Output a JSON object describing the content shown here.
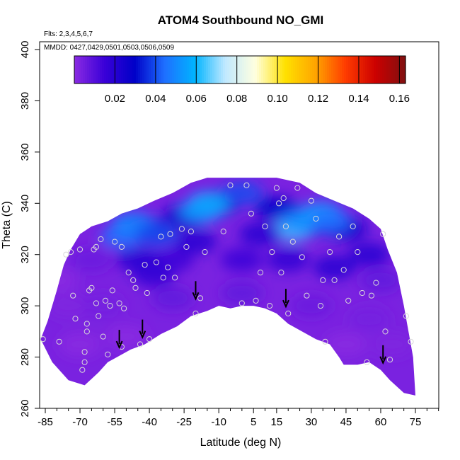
{
  "chart_data": {
    "type": "heatmap",
    "title": "ATOM4 Southbound NO_GMI",
    "subtitle_flights": "Flts: 2,3,4,5,6,7",
    "subtitle_dates": "MMDD: 0427,0429,0501,0503,0506,0509",
    "xlabel": "Latitude (deg N)",
    "ylabel": "Theta (C)",
    "xlim": [
      -88,
      92
    ],
    "ylim": [
      260,
      405
    ],
    "x_ticks": [
      -85,
      -70,
      -55,
      -40,
      -25,
      -10,
      5,
      15,
      30,
      45,
      60,
      75
    ],
    "y_ticks": [
      260,
      280,
      300,
      320,
      340,
      360,
      380,
      400
    ],
    "colorbar": {
      "range": [
        0,
        0.163
      ],
      "ticks": [
        0.02,
        0.04,
        0.06,
        0.08,
        0.1,
        0.12,
        0.14,
        0.16
      ],
      "tick_labels": [
        "0.02",
        "0.04",
        "0.06",
        "0.08",
        "0.10",
        "0.12",
        "0.14",
        "0.16"
      ],
      "colors": [
        "#8a2be2",
        "#3a00d8",
        "#0000c8",
        "#1e6fff",
        "#00b4ff",
        "#bfe8ff",
        "#ffffe0",
        "#ffe100",
        "#ffa500",
        "#ff3c00",
        "#cc0000",
        "#7f1010"
      ]
    },
    "upper_boundary": [
      [
        -87,
        287
      ],
      [
        -84,
        294
      ],
      [
        -80,
        306
      ],
      [
        -77,
        316
      ],
      [
        -74,
        322
      ],
      [
        -70,
        328
      ],
      [
        -65,
        331
      ],
      [
        -58,
        333
      ],
      [
        -52,
        336
      ],
      [
        -45,
        338
      ],
      [
        -38,
        341
      ],
      [
        -30,
        344
      ],
      [
        -22,
        348
      ],
      [
        -15,
        350
      ],
      [
        -5,
        350
      ],
      [
        5,
        350
      ],
      [
        15,
        350
      ],
      [
        25,
        348
      ],
      [
        32,
        344
      ],
      [
        40,
        341
      ],
      [
        48,
        338
      ],
      [
        55,
        334
      ],
      [
        60,
        330
      ],
      [
        63,
        322
      ],
      [
        67,
        313
      ],
      [
        70,
        300
      ],
      [
        72,
        290
      ],
      [
        74,
        280
      ],
      [
        75,
        265
      ]
    ],
    "lower_boundary": [
      [
        -87,
        287
      ],
      [
        -82,
        278
      ],
      [
        -75,
        271
      ],
      [
        -68,
        269
      ],
      [
        -62,
        274
      ],
      [
        -58,
        278
      ],
      [
        -54,
        280
      ],
      [
        -48,
        283
      ],
      [
        -42,
        285
      ],
      [
        -35,
        289
      ],
      [
        -28,
        292
      ],
      [
        -22,
        296
      ],
      [
        -15,
        298
      ],
      [
        -10,
        300
      ],
      [
        -5,
        299
      ],
      [
        0,
        300
      ],
      [
        5,
        300
      ],
      [
        10,
        299
      ],
      [
        15,
        297
      ],
      [
        20,
        293
      ],
      [
        26,
        290
      ],
      [
        32,
        287
      ],
      [
        38,
        285
      ],
      [
        42,
        280
      ],
      [
        44,
        277
      ],
      [
        50,
        277
      ],
      [
        55,
        278
      ],
      [
        60,
        275
      ],
      [
        64,
        271
      ],
      [
        70,
        266
      ],
      [
        75,
        265
      ]
    ],
    "field_points": [
      {
        "lat": -10,
        "theta": 340,
        "value": 0.025
      },
      {
        "lat": -25,
        "theta": 335,
        "value": 0.025
      },
      {
        "lat": 15,
        "theta": 338,
        "value": 0.03
      },
      {
        "lat": 30,
        "theta": 332,
        "value": 0.03
      },
      {
        "lat": 45,
        "theta": 330,
        "value": 0.025
      },
      {
        "lat": -40,
        "theta": 330,
        "value": 0.02
      },
      {
        "lat": -52,
        "theta": 327,
        "value": 0.045
      },
      {
        "lat": -47,
        "theta": 332,
        "value": 0.05
      },
      {
        "lat": -37,
        "theta": 328,
        "value": 0.04
      },
      {
        "lat": -14,
        "theta": 340,
        "value": 0.06
      },
      {
        "lat": -18,
        "theta": 337,
        "value": 0.055
      },
      {
        "lat": 0,
        "theta": 344,
        "value": 0.04
      },
      {
        "lat": 22,
        "theta": 330,
        "value": 0.065
      },
      {
        "lat": 26,
        "theta": 333,
        "value": 0.05
      },
      {
        "lat": 34,
        "theta": 336,
        "value": 0.055
      },
      {
        "lat": 38,
        "theta": 333,
        "value": 0.045
      },
      {
        "lat": -30,
        "theta": 318,
        "value": 0.015
      },
      {
        "lat": -45,
        "theta": 318,
        "value": 0.02
      },
      {
        "lat": -38,
        "theta": 312,
        "value": 0.018
      },
      {
        "lat": 0,
        "theta": 318,
        "value": 0.015
      },
      {
        "lat": 20,
        "theta": 318,
        "value": 0.018
      },
      {
        "lat": 40,
        "theta": 315,
        "value": 0.02
      },
      {
        "lat": 55,
        "theta": 320,
        "value": 0.02
      },
      {
        "lat": -75,
        "theta": 300,
        "value": 0.002
      },
      {
        "lat": -60,
        "theta": 300,
        "value": 0.004
      },
      {
        "lat": -30,
        "theta": 303,
        "value": 0.008
      },
      {
        "lat": 0,
        "theta": 305,
        "value": 0.008
      },
      {
        "lat": 30,
        "theta": 300,
        "value": 0.006
      },
      {
        "lat": 55,
        "theta": 295,
        "value": 0.004
      },
      {
        "lat": -70,
        "theta": 285,
        "value": 0.0
      },
      {
        "lat": -50,
        "theta": 288,
        "value": 0.0
      },
      {
        "lat": 45,
        "theta": 285,
        "value": 0.0
      },
      {
        "lat": 65,
        "theta": 285,
        "value": 0.002
      },
      {
        "lat": -80,
        "theta": 310,
        "value": 0.0
      },
      {
        "lat": 60,
        "theta": 310,
        "value": 0.008
      },
      {
        "lat": -20,
        "theta": 325,
        "value": 0.02
      },
      {
        "lat": 8,
        "theta": 328,
        "value": 0.02
      },
      {
        "lat": -65,
        "theta": 318,
        "value": 0.006
      }
    ],
    "sample_points": [
      [
        -86,
        287
      ],
      [
        -79,
        286
      ],
      [
        -73,
        304
      ],
      [
        -72,
        295
      ],
      [
        -69,
        275
      ],
      [
        -68,
        282
      ],
      [
        -68,
        278
      ],
      [
        -67,
        293
      ],
      [
        -67,
        290
      ],
      [
        -66,
        306
      ],
      [
        -65,
        307
      ],
      [
        -63,
        301
      ],
      [
        -62,
        296
      ],
      [
        -61,
        326
      ],
      [
        -60,
        288
      ],
      [
        -59,
        302
      ],
      [
        -58,
        281
      ],
      [
        -56,
        306
      ],
      [
        -55,
        325
      ],
      [
        -53,
        301
      ],
      [
        -52,
        284
      ],
      [
        -51,
        299
      ],
      [
        -49,
        313
      ],
      [
        -47,
        310
      ],
      [
        -46,
        307
      ],
      [
        -44,
        285
      ],
      [
        -42,
        316
      ],
      [
        -41,
        305
      ],
      [
        -40,
        287
      ],
      [
        -37,
        317
      ],
      [
        -35,
        327
      ],
      [
        -34,
        311
      ],
      [
        -32,
        315
      ],
      [
        -31,
        328
      ],
      [
        -29,
        311
      ],
      [
        -26,
        330
      ],
      [
        -24,
        323
      ],
      [
        -22,
        329
      ],
      [
        -20,
        297
      ],
      [
        -18,
        303
      ],
      [
        -16,
        321
      ],
      [
        -8,
        329
      ],
      [
        -5,
        347
      ],
      [
        0,
        301
      ],
      [
        2,
        347
      ],
      [
        4,
        336
      ],
      [
        6,
        302
      ],
      [
        8,
        313
      ],
      [
        10,
        331
      ],
      [
        12,
        300
      ],
      [
        13,
        321
      ],
      [
        15,
        346
      ],
      [
        16,
        340
      ],
      [
        17,
        313
      ],
      [
        18,
        342
      ],
      [
        19,
        331
      ],
      [
        20,
        297
      ],
      [
        22,
        325
      ],
      [
        24,
        346
      ],
      [
        26,
        319
      ],
      [
        28,
        304
      ],
      [
        30,
        341
      ],
      [
        32,
        334
      ],
      [
        34,
        300
      ],
      [
        35,
        310
      ],
      [
        36,
        286
      ],
      [
        38,
        321
      ],
      [
        40,
        310
      ],
      [
        42,
        327
      ],
      [
        44,
        314
      ],
      [
        46,
        302
      ],
      [
        48,
        331
      ],
      [
        50,
        321
      ],
      [
        52,
        305
      ],
      [
        54,
        278
      ],
      [
        56,
        304
      ],
      [
        58,
        309
      ],
      [
        61,
        328
      ],
      [
        62,
        290
      ],
      [
        64,
        279
      ],
      [
        71,
        296
      ],
      [
        73,
        286
      ],
      [
        -63,
        323
      ],
      [
        -64,
        322
      ],
      [
        -57,
        300
      ],
      [
        -52,
        323
      ],
      [
        -70,
        322
      ],
      [
        -74,
        321
      ],
      [
        -76,
        320
      ]
    ],
    "arrows": [
      {
        "lat": -53,
        "theta": 284
      },
      {
        "lat": -43,
        "theta": 288
      },
      {
        "lat": -20,
        "theta": 303
      },
      {
        "lat": 19,
        "theta": 300
      },
      {
        "lat": 61,
        "theta": 278
      }
    ]
  }
}
